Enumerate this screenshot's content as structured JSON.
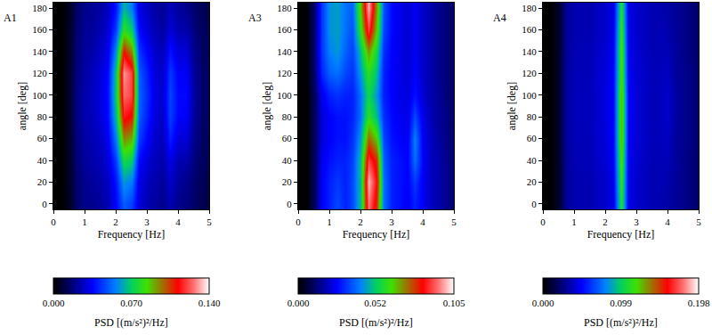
{
  "chart_data": [
    {
      "type": "heatmap",
      "title": "A1",
      "x_label": "Frequency [Hz]",
      "y_label": "angle [deg]",
      "x": [
        0,
        0.25,
        0.5,
        0.75,
        1,
        1.25,
        1.5,
        1.75,
        2,
        2.25,
        2.5,
        2.75,
        3,
        3.25,
        3.5,
        3.75,
        4,
        4.25,
        4.5,
        4.75,
        5
      ],
      "y": [
        0,
        20,
        40,
        60,
        80,
        100,
        120,
        140,
        160,
        180
      ],
      "z": [
        [
          0,
          0,
          0.005,
          0.015,
          0.02,
          0.02,
          0.022,
          0.025,
          0.035,
          0.05,
          0.045,
          0.03,
          0.025,
          0.022,
          0.02,
          0.025,
          0.02,
          0.018,
          0.015,
          0.012,
          0.01
        ],
        [
          0,
          0,
          0.006,
          0.016,
          0.02,
          0.022,
          0.024,
          0.027,
          0.038,
          0.06,
          0.055,
          0.032,
          0.027,
          0.024,
          0.022,
          0.028,
          0.022,
          0.02,
          0.016,
          0.013,
          0.011
        ],
        [
          0,
          0,
          0.006,
          0.017,
          0.022,
          0.024,
          0.026,
          0.03,
          0.045,
          0.075,
          0.07,
          0.036,
          0.03,
          0.026,
          0.024,
          0.032,
          0.025,
          0.024,
          0.018,
          0.014,
          0.012
        ],
        [
          0,
          0,
          0.007,
          0.018,
          0.023,
          0.025,
          0.028,
          0.033,
          0.055,
          0.095,
          0.09,
          0.045,
          0.035,
          0.028,
          0.026,
          0.04,
          0.03,
          0.03,
          0.02,
          0.015,
          0.013
        ],
        [
          0,
          0,
          0.007,
          0.019,
          0.024,
          0.026,
          0.03,
          0.036,
          0.065,
          0.115,
          0.11,
          0.05,
          0.04,
          0.03,
          0.028,
          0.045,
          0.035,
          0.034,
          0.022,
          0.016,
          0.014
        ],
        [
          0,
          0,
          0.007,
          0.019,
          0.024,
          0.027,
          0.031,
          0.037,
          0.07,
          0.125,
          0.12,
          0.052,
          0.042,
          0.031,
          0.029,
          0.046,
          0.036,
          0.036,
          0.023,
          0.016,
          0.014
        ],
        [
          0,
          0,
          0.007,
          0.018,
          0.023,
          0.026,
          0.03,
          0.036,
          0.068,
          0.13,
          0.12,
          0.05,
          0.04,
          0.03,
          0.028,
          0.044,
          0.034,
          0.034,
          0.022,
          0.016,
          0.014
        ],
        [
          0,
          0,
          0.006,
          0.017,
          0.022,
          0.024,
          0.028,
          0.032,
          0.058,
          0.11,
          0.095,
          0.044,
          0.035,
          0.028,
          0.026,
          0.038,
          0.03,
          0.03,
          0.02,
          0.015,
          0.013
        ],
        [
          0,
          0,
          0.006,
          0.016,
          0.021,
          0.022,
          0.025,
          0.029,
          0.045,
          0.08,
          0.07,
          0.036,
          0.03,
          0.025,
          0.023,
          0.03,
          0.025,
          0.024,
          0.018,
          0.014,
          0.012
        ],
        [
          0,
          0,
          0.005,
          0.015,
          0.02,
          0.021,
          0.023,
          0.027,
          0.038,
          0.065,
          0.055,
          0.032,
          0.027,
          0.023,
          0.021,
          0.026,
          0.022,
          0.02,
          0.016,
          0.013,
          0.011
        ]
      ],
      "xlim": [
        0,
        5
      ],
      "ylim": [
        -5,
        185
      ],
      "xticks": [
        0,
        1,
        2,
        3,
        4,
        5
      ],
      "yticks": [
        0,
        20,
        40,
        60,
        80,
        100,
        120,
        140,
        160,
        180
      ],
      "zlim": [
        0,
        0.14
      ],
      "zticks": [
        {
          "value": 0,
          "label": "0.000"
        },
        {
          "value": 0.07,
          "label": "0.070"
        },
        {
          "value": 0.14,
          "label": "0.140"
        }
      ],
      "colorbar_label": "PSD [(m/s²)²/Hz]"
    },
    {
      "type": "heatmap",
      "title": "A3",
      "x_label": "Frequency [Hz]",
      "y_label": "angle [deg]",
      "x": [
        0,
        0.25,
        0.5,
        0.75,
        1,
        1.25,
        1.5,
        1.75,
        2,
        2.25,
        2.5,
        2.75,
        3,
        3.25,
        3.5,
        3.75,
        4,
        4.25,
        4.5,
        4.75,
        5
      ],
      "y": [
        0,
        20,
        40,
        60,
        80,
        100,
        120,
        140,
        160,
        180
      ],
      "z": [
        [
          0,
          0,
          0.01,
          0.025,
          0.03,
          0.035,
          0.03,
          0.035,
          0.05,
          0.095,
          0.08,
          0.04,
          0.03,
          0.028,
          0.025,
          0.03,
          0.025,
          0.02,
          0.018,
          0.015,
          0.012
        ],
        [
          0,
          0,
          0.01,
          0.025,
          0.03,
          0.033,
          0.03,
          0.035,
          0.05,
          0.1,
          0.085,
          0.04,
          0.03,
          0.028,
          0.026,
          0.033,
          0.025,
          0.02,
          0.018,
          0.015,
          0.012
        ],
        [
          0,
          0,
          0.01,
          0.024,
          0.028,
          0.03,
          0.03,
          0.034,
          0.05,
          0.09,
          0.08,
          0.038,
          0.03,
          0.028,
          0.026,
          0.04,
          0.026,
          0.02,
          0.018,
          0.015,
          0.012
        ],
        [
          0,
          0,
          0.01,
          0.022,
          0.026,
          0.028,
          0.028,
          0.032,
          0.045,
          0.075,
          0.065,
          0.035,
          0.028,
          0.026,
          0.025,
          0.042,
          0.025,
          0.02,
          0.017,
          0.014,
          0.012
        ],
        [
          0,
          0,
          0.01,
          0.022,
          0.026,
          0.028,
          0.028,
          0.03,
          0.04,
          0.06,
          0.05,
          0.032,
          0.027,
          0.025,
          0.024,
          0.035,
          0.024,
          0.019,
          0.016,
          0.014,
          0.011
        ],
        [
          0,
          0,
          0.01,
          0.024,
          0.03,
          0.032,
          0.03,
          0.03,
          0.04,
          0.055,
          0.045,
          0.03,
          0.026,
          0.024,
          0.023,
          0.028,
          0.022,
          0.018,
          0.016,
          0.013,
          0.011
        ],
        [
          0,
          0,
          0.012,
          0.03,
          0.038,
          0.04,
          0.035,
          0.032,
          0.045,
          0.06,
          0.05,
          0.03,
          0.026,
          0.024,
          0.022,
          0.026,
          0.021,
          0.018,
          0.015,
          0.013,
          0.011
        ],
        [
          0,
          0,
          0.012,
          0.032,
          0.042,
          0.045,
          0.038,
          0.034,
          0.05,
          0.07,
          0.055,
          0.032,
          0.026,
          0.024,
          0.022,
          0.025,
          0.021,
          0.018,
          0.015,
          0.013,
          0.011
        ],
        [
          0,
          0,
          0.012,
          0.032,
          0.044,
          0.046,
          0.04,
          0.036,
          0.06,
          0.09,
          0.065,
          0.035,
          0.027,
          0.024,
          0.022,
          0.025,
          0.021,
          0.018,
          0.015,
          0.013,
          0.011
        ],
        [
          0,
          0,
          0.012,
          0.032,
          0.044,
          0.046,
          0.04,
          0.038,
          0.065,
          0.1,
          0.07,
          0.036,
          0.027,
          0.024,
          0.022,
          0.025,
          0.021,
          0.018,
          0.015,
          0.013,
          0.011
        ]
      ],
      "xlim": [
        0,
        5
      ],
      "ylim": [
        -5,
        185
      ],
      "xticks": [
        0,
        1,
        2,
        3,
        4,
        5
      ],
      "yticks": [
        0,
        20,
        40,
        60,
        80,
        100,
        120,
        140,
        160,
        180
      ],
      "zlim": [
        0,
        0.105
      ],
      "zticks": [
        {
          "value": 0,
          "label": "0.000"
        },
        {
          "value": 0.052,
          "label": "0.052"
        },
        {
          "value": 0.105,
          "label": "0.105"
        }
      ],
      "colorbar_label": "PSD [(m/s²)²/Hz]"
    },
    {
      "type": "heatmap",
      "title": "A4",
      "x_label": "Frequency [Hz]",
      "y_label": "angle [deg]",
      "x": [
        0,
        0.25,
        0.5,
        0.75,
        1,
        1.25,
        1.5,
        1.75,
        2,
        2.25,
        2.5,
        2.75,
        3,
        3.25,
        3.5,
        3.75,
        4,
        4.25,
        4.5,
        4.75,
        5
      ],
      "y": [
        0,
        20,
        40,
        60,
        80,
        100,
        120,
        140,
        160,
        180
      ],
      "z": [
        [
          0,
          0,
          0.01,
          0.03,
          0.035,
          0.035,
          0.035,
          0.038,
          0.04,
          0.045,
          0.11,
          0.045,
          0.04,
          0.038,
          0.035,
          0.035,
          0.033,
          0.03,
          0.028,
          0.025,
          0.022
        ],
        [
          0,
          0,
          0.01,
          0.03,
          0.035,
          0.035,
          0.035,
          0.038,
          0.04,
          0.046,
          0.115,
          0.046,
          0.04,
          0.038,
          0.035,
          0.036,
          0.034,
          0.03,
          0.028,
          0.025,
          0.022
        ],
        [
          0,
          0,
          0.01,
          0.03,
          0.035,
          0.036,
          0.036,
          0.039,
          0.042,
          0.048,
          0.12,
          0.047,
          0.041,
          0.038,
          0.035,
          0.036,
          0.036,
          0.031,
          0.028,
          0.025,
          0.022
        ],
        [
          0,
          0,
          0.01,
          0.031,
          0.036,
          0.036,
          0.036,
          0.04,
          0.043,
          0.05,
          0.125,
          0.048,
          0.042,
          0.039,
          0.036,
          0.037,
          0.038,
          0.031,
          0.029,
          0.026,
          0.023
        ],
        [
          0,
          0,
          0.01,
          0.031,
          0.036,
          0.037,
          0.037,
          0.04,
          0.044,
          0.05,
          0.125,
          0.049,
          0.042,
          0.039,
          0.036,
          0.037,
          0.04,
          0.032,
          0.029,
          0.026,
          0.023
        ],
        [
          0,
          0,
          0.01,
          0.031,
          0.036,
          0.037,
          0.037,
          0.04,
          0.044,
          0.05,
          0.125,
          0.049,
          0.042,
          0.039,
          0.036,
          0.037,
          0.04,
          0.032,
          0.029,
          0.026,
          0.023
        ],
        [
          0,
          0,
          0.01,
          0.031,
          0.036,
          0.036,
          0.036,
          0.04,
          0.043,
          0.049,
          0.12,
          0.048,
          0.042,
          0.039,
          0.036,
          0.037,
          0.038,
          0.031,
          0.029,
          0.026,
          0.023
        ],
        [
          0,
          0,
          0.01,
          0.03,
          0.035,
          0.036,
          0.036,
          0.039,
          0.042,
          0.048,
          0.12,
          0.047,
          0.041,
          0.038,
          0.035,
          0.036,
          0.036,
          0.031,
          0.028,
          0.025,
          0.022
        ],
        [
          0,
          0,
          0.01,
          0.03,
          0.035,
          0.035,
          0.035,
          0.038,
          0.04,
          0.046,
          0.115,
          0.046,
          0.04,
          0.038,
          0.035,
          0.036,
          0.034,
          0.03,
          0.028,
          0.025,
          0.022
        ],
        [
          0,
          0,
          0.01,
          0.03,
          0.035,
          0.035,
          0.035,
          0.038,
          0.04,
          0.045,
          0.11,
          0.045,
          0.04,
          0.038,
          0.035,
          0.035,
          0.033,
          0.03,
          0.028,
          0.025,
          0.022
        ]
      ],
      "xlim": [
        0,
        5
      ],
      "ylim": [
        -5,
        185
      ],
      "xticks": [
        0,
        1,
        2,
        3,
        4,
        5
      ],
      "yticks": [
        0,
        20,
        40,
        60,
        80,
        100,
        120,
        140,
        160,
        180
      ],
      "zlim": [
        0,
        0.198
      ],
      "zticks": [
        {
          "value": 0,
          "label": "0.000"
        },
        {
          "value": 0.099,
          "label": "0.099"
        },
        {
          "value": 0.198,
          "label": "0.198"
        }
      ],
      "colorbar_label": "PSD [(m/s²)²/Hz]"
    }
  ]
}
